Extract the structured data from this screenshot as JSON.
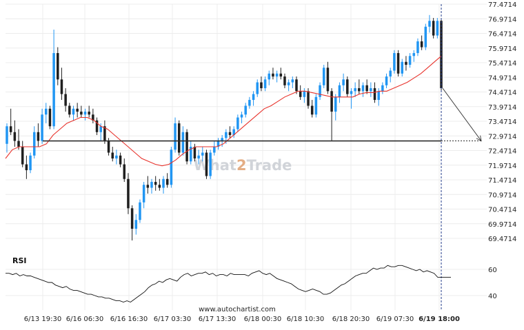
{
  "chart_data": {
    "type": "candlestick",
    "price_axis": {
      "ticks": [
        "77.4714",
        "76.9714",
        "76.4714",
        "75.9714",
        "75.4714",
        "74.9714",
        "74.4714",
        "73.9714",
        "73.4714",
        "72.9714",
        "72.4714",
        "71.9714",
        "71.4714",
        "70.9714",
        "70.4714",
        "69.9714",
        "69.4714"
      ],
      "range": [
        69.2,
        77.5
      ]
    },
    "time_axis": {
      "ticks": [
        "6/13 19:30",
        "6/16 06:30",
        "6/16 16:30",
        "6/17 03:30",
        "6/17 13:30",
        "6/18 00:30",
        "6/18 10:30",
        "6/18 20:30",
        "6/19 07:30",
        "6/19 18:00"
      ],
      "highlight": "6/19 18:00"
    },
    "support_level": 72.8,
    "forecast": {
      "from_price": 74.6,
      "to_price": 72.8
    },
    "candles": [
      [
        72.7,
        73.4,
        72.4,
        73.3
      ],
      [
        73.3,
        73.9,
        73.0,
        73.1
      ],
      [
        73.1,
        73.5,
        72.6,
        72.8
      ],
      [
        72.8,
        73.2,
        72.5,
        72.6
      ],
      [
        72.6,
        72.8,
        71.9,
        72.0
      ],
      [
        72.0,
        72.3,
        71.5,
        71.8
      ],
      [
        71.8,
        72.4,
        71.7,
        72.3
      ],
      [
        72.3,
        73.3,
        72.2,
        73.1
      ],
      [
        73.1,
        73.4,
        72.6,
        72.8
      ],
      [
        72.8,
        73.9,
        72.7,
        73.7
      ],
      [
        73.7,
        74.1,
        73.4,
        73.9
      ],
      [
        73.9,
        74.0,
        73.2,
        73.3
      ],
      [
        73.3,
        76.6,
        73.2,
        75.8
      ],
      [
        75.8,
        76.0,
        74.7,
        74.9
      ],
      [
        74.9,
        75.3,
        74.2,
        74.4
      ],
      [
        74.4,
        74.6,
        73.8,
        74.0
      ],
      [
        74.0,
        74.1,
        73.6,
        73.7
      ],
      [
        73.7,
        74.0,
        73.5,
        73.9
      ],
      [
        73.9,
        74.1,
        73.6,
        73.8
      ],
      [
        73.8,
        74.0,
        73.6,
        73.7
      ],
      [
        73.7,
        73.9,
        73.5,
        73.8
      ],
      [
        73.8,
        74.0,
        73.6,
        73.7
      ],
      [
        73.7,
        73.9,
        73.4,
        73.5
      ],
      [
        73.5,
        73.6,
        73.0,
        73.1
      ],
      [
        73.1,
        73.4,
        72.8,
        73.3
      ],
      [
        73.3,
        73.5,
        72.7,
        72.8
      ],
      [
        72.8,
        72.9,
        72.3,
        72.4
      ],
      [
        72.4,
        72.6,
        72.1,
        72.2
      ],
      [
        72.2,
        72.5,
        72.0,
        72.3
      ],
      [
        72.3,
        72.4,
        71.9,
        72.0
      ],
      [
        72.0,
        72.2,
        71.4,
        71.5
      ],
      [
        71.5,
        71.7,
        70.3,
        70.5
      ],
      [
        70.5,
        70.6,
        69.4,
        69.8
      ],
      [
        69.8,
        70.3,
        69.6,
        70.1
      ],
      [
        70.1,
        70.8,
        70.0,
        70.7
      ],
      [
        70.7,
        71.4,
        70.5,
        71.3
      ],
      [
        71.3,
        71.6,
        71.0,
        71.2
      ],
      [
        71.2,
        71.5,
        71.0,
        71.4
      ],
      [
        71.4,
        71.6,
        71.1,
        71.3
      ],
      [
        71.3,
        71.5,
        71.1,
        71.2
      ],
      [
        71.2,
        71.6,
        71.0,
        71.5
      ],
      [
        71.5,
        71.7,
        71.2,
        71.3
      ],
      [
        71.3,
        72.6,
        71.2,
        72.5
      ],
      [
        72.5,
        73.6,
        72.4,
        73.4
      ],
      [
        73.4,
        73.5,
        72.3,
        72.4
      ],
      [
        72.4,
        73.3,
        72.3,
        73.1
      ],
      [
        73.1,
        73.2,
        72.0,
        72.1
      ],
      [
        72.1,
        72.8,
        72.0,
        72.6
      ],
      [
        72.6,
        72.7,
        72.1,
        72.2
      ],
      [
        72.2,
        72.5,
        72.0,
        72.3
      ],
      [
        72.3,
        72.6,
        72.1,
        72.4
      ],
      [
        72.4,
        72.5,
        71.5,
        71.6
      ],
      [
        71.6,
        72.5,
        71.5,
        72.4
      ],
      [
        72.4,
        72.8,
        72.3,
        72.6
      ],
      [
        72.6,
        72.9,
        72.5,
        72.8
      ],
      [
        72.8,
        73.0,
        72.6,
        72.9
      ],
      [
        72.9,
        73.2,
        72.7,
        73.1
      ],
      [
        73.1,
        73.3,
        72.9,
        73.0
      ],
      [
        73.0,
        73.3,
        72.9,
        73.2
      ],
      [
        73.2,
        73.7,
        73.1,
        73.6
      ],
      [
        73.6,
        73.8,
        73.4,
        73.7
      ],
      [
        73.7,
        74.1,
        73.6,
        74.0
      ],
      [
        74.0,
        74.3,
        73.9,
        74.2
      ],
      [
        74.2,
        74.5,
        74.0,
        74.4
      ],
      [
        74.4,
        74.9,
        74.3,
        74.8
      ],
      [
        74.8,
        75.0,
        74.5,
        74.6
      ],
      [
        74.6,
        75.0,
        74.5,
        74.9
      ],
      [
        74.9,
        75.2,
        74.7,
        75.1
      ],
      [
        75.1,
        75.3,
        74.9,
        75.0
      ],
      [
        75.0,
        75.2,
        74.8,
        75.1
      ],
      [
        75.1,
        75.3,
        74.9,
        75.0
      ],
      [
        75.0,
        75.1,
        74.6,
        74.7
      ],
      [
        74.7,
        74.9,
        74.5,
        74.8
      ],
      [
        74.8,
        75.0,
        74.6,
        74.9
      ],
      [
        74.9,
        75.0,
        74.4,
        74.5
      ],
      [
        74.5,
        74.7,
        74.2,
        74.3
      ],
      [
        74.3,
        74.6,
        74.1,
        74.5
      ],
      [
        74.5,
        74.6,
        73.9,
        74.0
      ],
      [
        74.0,
        74.2,
        73.6,
        73.7
      ],
      [
        73.7,
        74.4,
        73.6,
        74.3
      ],
      [
        74.3,
        74.8,
        74.2,
        74.7
      ],
      [
        74.7,
        75.4,
        74.6,
        75.3
      ],
      [
        75.3,
        75.5,
        74.4,
        74.5
      ],
      [
        74.5,
        74.6,
        72.8,
        73.8
      ],
      [
        73.8,
        74.4,
        73.5,
        74.3
      ],
      [
        74.3,
        74.8,
        74.1,
        74.7
      ],
      [
        74.7,
        75.1,
        74.5,
        74.9
      ],
      [
        74.9,
        75.0,
        74.3,
        74.4
      ],
      [
        74.4,
        74.6,
        73.9,
        74.5
      ],
      [
        74.5,
        74.8,
        74.3,
        74.6
      ],
      [
        74.6,
        74.9,
        74.4,
        74.5
      ],
      [
        74.5,
        74.8,
        74.3,
        74.7
      ],
      [
        74.7,
        74.9,
        74.4,
        74.5
      ],
      [
        74.5,
        74.8,
        74.3,
        74.6
      ],
      [
        74.6,
        74.8,
        74.1,
        74.2
      ],
      [
        74.2,
        74.6,
        74.0,
        74.5
      ],
      [
        74.5,
        74.8,
        74.4,
        74.7
      ],
      [
        74.7,
        75.1,
        74.6,
        75.0
      ],
      [
        75.0,
        75.3,
        74.8,
        75.2
      ],
      [
        75.2,
        75.9,
        75.1,
        75.8
      ],
      [
        75.8,
        75.9,
        75.0,
        75.1
      ],
      [
        75.1,
        75.6,
        75.0,
        75.5
      ],
      [
        75.5,
        75.7,
        75.2,
        75.4
      ],
      [
        75.4,
        75.8,
        75.3,
        75.7
      ],
      [
        75.7,
        75.9,
        75.5,
        75.8
      ],
      [
        75.8,
        76.3,
        75.7,
        76.2
      ],
      [
        76.2,
        76.4,
        75.9,
        76.0
      ],
      [
        76.0,
        76.8,
        75.9,
        76.7
      ],
      [
        76.7,
        77.1,
        76.5,
        76.9
      ],
      [
        76.9,
        77.0,
        76.3,
        76.4
      ],
      [
        76.4,
        77.0,
        76.3,
        76.9
      ],
      [
        76.9,
        77.0,
        74.5,
        74.6
      ]
    ],
    "ma": {
      "color": "#e8322b",
      "values": [
        72.2,
        72.5,
        72.6,
        72.6,
        72.6,
        72.6,
        72.7,
        73.0,
        73.2,
        73.4,
        73.5,
        73.6,
        73.6,
        73.5,
        73.3,
        73.2,
        73.0,
        72.8,
        72.6,
        72.4,
        72.2,
        72.1,
        72.0,
        71.95,
        72.0,
        72.15,
        72.35,
        72.5,
        72.6,
        72.6,
        72.6,
        72.6,
        72.7,
        72.9,
        73.1,
        73.3,
        73.5,
        73.7,
        73.9,
        74.0,
        74.15,
        74.3,
        74.4,
        74.5,
        74.5,
        74.45,
        74.4,
        74.35,
        74.3,
        74.3,
        74.3,
        74.3,
        74.4,
        74.45,
        74.45,
        74.5,
        74.5,
        74.6,
        74.7,
        74.8,
        74.95,
        75.1,
        75.3,
        75.5,
        75.7
      ]
    },
    "rsi": {
      "label": "RSI",
      "levels": [
        60,
        40
      ],
      "values": [
        57,
        57,
        56,
        57,
        55,
        56,
        55,
        55,
        54,
        53,
        52,
        51,
        50,
        50,
        48,
        47,
        46,
        47,
        45,
        44,
        44,
        43,
        42,
        41,
        41,
        40,
        39,
        39,
        38,
        38,
        37,
        36,
        36,
        35,
        36,
        35,
        37,
        39,
        41,
        43,
        46,
        48,
        49,
        51,
        50,
        52,
        53,
        52,
        51,
        54,
        56,
        57,
        55,
        56,
        57,
        57,
        58,
        56,
        57,
        55,
        56,
        56,
        55,
        57,
        56,
        56,
        56,
        56,
        55,
        57,
        58,
        59,
        57,
        56,
        57,
        55,
        53,
        52,
        51,
        50,
        49,
        47,
        45,
        44,
        43,
        44,
        45,
        44,
        43,
        41,
        41,
        42,
        44,
        46,
        48,
        49,
        51,
        53,
        55,
        56,
        57,
        57,
        59,
        61,
        60,
        61,
        61,
        63,
        62,
        62,
        63,
        63,
        62,
        61,
        60,
        59,
        60,
        58,
        59,
        58,
        57,
        54,
        54
      ]
    }
  },
  "watermark": {
    "prefix": "What",
    "accent": "2",
    "suffix": "Trade"
  },
  "footer": {
    "source_url": "www.autochartist.com"
  },
  "colors": {
    "bull": "#2196f3",
    "bear": "#1f1f1f",
    "support": "#2b2b2b",
    "forecast": "#444444",
    "grid": "#ececec",
    "watermark": "#c9cdd3",
    "watermark_accent": "#e0a070"
  }
}
